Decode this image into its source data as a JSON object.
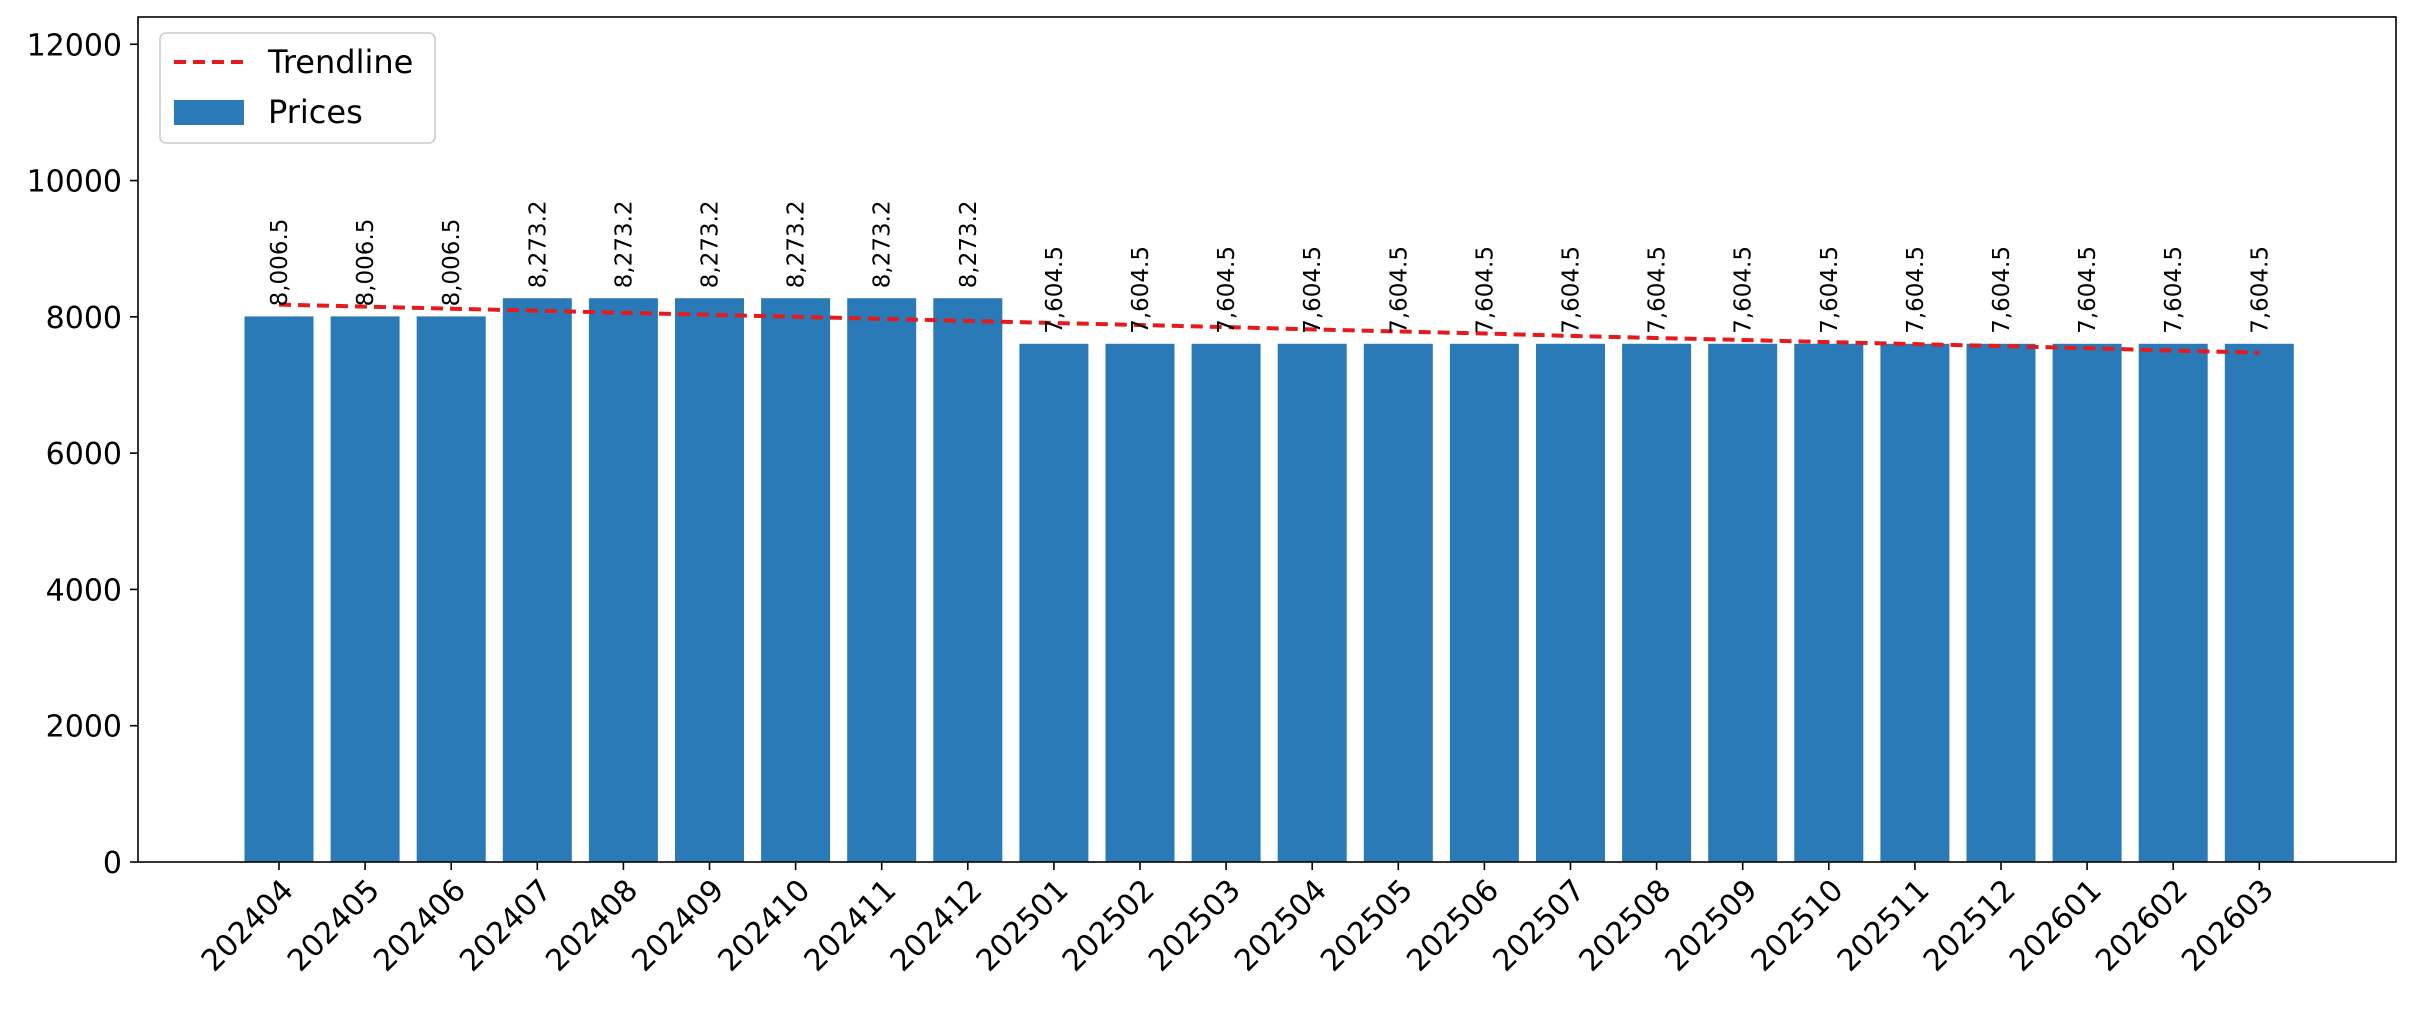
{
  "chart_data": {
    "type": "bar",
    "categories": [
      "202404",
      "202405",
      "202406",
      "202407",
      "202408",
      "202409",
      "202410",
      "202411",
      "202412",
      "202501",
      "202502",
      "202503",
      "202504",
      "202505",
      "202506",
      "202507",
      "202508",
      "202509",
      "202510",
      "202511",
      "202512",
      "202601",
      "202602",
      "202603"
    ],
    "series": [
      {
        "name": "Prices",
        "type": "bar",
        "color": "#2a7ab8",
        "values": [
          8006.5,
          8006.5,
          8006.5,
          8273.2,
          8273.2,
          8273.2,
          8273.2,
          8273.2,
          8273.2,
          7604.5,
          7604.5,
          7604.5,
          7604.5,
          7604.5,
          7604.5,
          7604.5,
          7604.5,
          7604.5,
          7604.5,
          7604.5,
          7604.5,
          7604.5,
          7604.5,
          7604.5
        ],
        "labels": [
          "8,006.5",
          "8,006.5",
          "8,006.5",
          "8,273.2",
          "8,273.2",
          "8,273.2",
          "8,273.2",
          "8,273.2",
          "8,273.2",
          "7,604.5",
          "7,604.5",
          "7,604.5",
          "7,604.5",
          "7,604.5",
          "7,604.5",
          "7,604.5",
          "7,604.5",
          "7,604.5",
          "7,604.5",
          "7,604.5",
          "7,604.5",
          "7,604.5",
          "7,604.5",
          "7,604.5"
        ]
      },
      {
        "name": "Trendline",
        "type": "line",
        "style": "dashed",
        "color": "#e41a1c",
        "values": [
          8180,
          8150,
          8120,
          8090,
          8060,
          8030,
          8000,
          7970,
          7940,
          7910,
          7880,
          7850,
          7815,
          7785,
          7755,
          7720,
          7690,
          7660,
          7630,
          7600,
          7570,
          7540,
          7505,
          7475
        ]
      }
    ],
    "title": "",
    "xlabel": "",
    "ylabel": "",
    "ylim": [
      0,
      12400
    ],
    "yticks": [
      0,
      2000,
      4000,
      6000,
      8000,
      10000,
      12000
    ],
    "grid": false,
    "legend": {
      "position": "top-left",
      "entries": [
        "Trendline",
        "Prices"
      ]
    }
  }
}
